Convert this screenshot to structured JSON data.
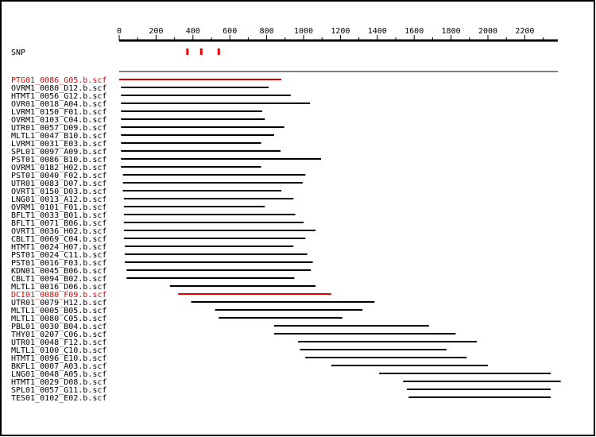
{
  "axis": {
    "tick_labels": [
      "0",
      "200",
      "400",
      "600",
      "800",
      "1000",
      "1200",
      "1400",
      "1600",
      "1800",
      "2000",
      "2200"
    ],
    "min": 0,
    "max": 2380,
    "major_step": 200,
    "minor_step": 100
  },
  "snp": {
    "label": "SNP",
    "positions": [
      370,
      445,
      540
    ],
    "color": "#e00000"
  },
  "colors": {
    "normal": "#000000",
    "highlight": "#e00000",
    "frame": "#000000"
  },
  "reads": [
    {
      "name": "PTG01_0086_G05.b.scf",
      "start": 0,
      "end": 880,
      "highlight": true
    },
    {
      "name": "OVRM1_0080_D12.b.scf",
      "start": 10,
      "end": 810,
      "highlight": false
    },
    {
      "name": "HTMT1_0056_G12.b.scf",
      "start": 10,
      "end": 930,
      "highlight": false
    },
    {
      "name": "OVR01_0018_A04.b.scf",
      "start": 10,
      "end": 1035,
      "highlight": false
    },
    {
      "name": "LVRM1_0150_F01.b.scf",
      "start": 10,
      "end": 775,
      "highlight": false
    },
    {
      "name": "OVRM1_0103_C04.b.scf",
      "start": 10,
      "end": 790,
      "highlight": false
    },
    {
      "name": "UTR01_0057_D09.b.scf",
      "start": 10,
      "end": 895,
      "highlight": false
    },
    {
      "name": "MLTL1_0047_B10.b.scf",
      "start": 10,
      "end": 840,
      "highlight": false
    },
    {
      "name": "LVRM1_0031_E03.b.scf",
      "start": 10,
      "end": 770,
      "highlight": false
    },
    {
      "name": "SPL01_0097_A09.b.scf",
      "start": 10,
      "end": 875,
      "highlight": false
    },
    {
      "name": "PST01_0086_B10.b.scf",
      "start": 10,
      "end": 1095,
      "highlight": false
    },
    {
      "name": "OVRM1_0182_H02.b.scf",
      "start": 10,
      "end": 770,
      "highlight": false
    },
    {
      "name": "PST01_0040_F02.b.scf",
      "start": 20,
      "end": 1010,
      "highlight": false
    },
    {
      "name": "UTR01_0083_D07.b.scf",
      "start": 20,
      "end": 995,
      "highlight": false
    },
    {
      "name": "OVRT1_0150_D03.b.scf",
      "start": 20,
      "end": 880,
      "highlight": false
    },
    {
      "name": "LNG01_0013_A12.b.scf",
      "start": 25,
      "end": 945,
      "highlight": false
    },
    {
      "name": "OVRM1_0101_F01.b.scf",
      "start": 25,
      "end": 790,
      "highlight": false
    },
    {
      "name": "BFLT1_0033_B01.b.scf",
      "start": 25,
      "end": 955,
      "highlight": false
    },
    {
      "name": "BFLT1_0071_B06.b.scf",
      "start": 25,
      "end": 1000,
      "highlight": false
    },
    {
      "name": "OVRT1_0036_H02.b.scf",
      "start": 25,
      "end": 1065,
      "highlight": false
    },
    {
      "name": "CBLT1_0069_C04.b.scf",
      "start": 25,
      "end": 1010,
      "highlight": false
    },
    {
      "name": "HTMT1_0024_H07.b.scf",
      "start": 30,
      "end": 945,
      "highlight": false
    },
    {
      "name": "PST01_0024_C11.b.scf",
      "start": 30,
      "end": 1020,
      "highlight": false
    },
    {
      "name": "PST01_0016_F03.b.scf",
      "start": 30,
      "end": 1050,
      "highlight": false
    },
    {
      "name": "KDN01_0045_B06.b.scf",
      "start": 40,
      "end": 1040,
      "highlight": false
    },
    {
      "name": "CBLT1_0094_B02.b.scf",
      "start": 40,
      "end": 950,
      "highlight": false
    },
    {
      "name": "MLTL1_0016_D06.b.scf",
      "start": 275,
      "end": 1065,
      "highlight": false
    },
    {
      "name": "DCI01_0080_F09.b.scf",
      "start": 320,
      "end": 1150,
      "highlight": true
    },
    {
      "name": "UTR01_0079_H12.b.scf",
      "start": 390,
      "end": 1385,
      "highlight": false
    },
    {
      "name": "MLTL1_0005_B05.b.scf",
      "start": 520,
      "end": 1320,
      "highlight": false
    },
    {
      "name": "MLTL1_0080_C05.b.scf",
      "start": 540,
      "end": 1210,
      "highlight": false
    },
    {
      "name": "PBL01_0030_B04.b.scf",
      "start": 840,
      "end": 1680,
      "highlight": false
    },
    {
      "name": "THY01_0207_C06.b.scf",
      "start": 840,
      "end": 1825,
      "highlight": false
    },
    {
      "name": "UTR01_0048_F12.b.scf",
      "start": 970,
      "end": 1940,
      "highlight": false
    },
    {
      "name": "MLTL1_0100_C10.b.scf",
      "start": 980,
      "end": 1775,
      "highlight": false
    },
    {
      "name": "HTMT1_0096_E10.b.scf",
      "start": 1010,
      "end": 1885,
      "highlight": false
    },
    {
      "name": "BKFL1_0007_A03.b.scf",
      "start": 1150,
      "end": 2000,
      "highlight": false
    },
    {
      "name": "LNG01_0048_A05.b.scf",
      "start": 1410,
      "end": 2340,
      "highlight": false
    },
    {
      "name": "HTMT1_0029_D08.b.scf",
      "start": 1540,
      "end": 2395,
      "highlight": false
    },
    {
      "name": "SPL01_0057_G11.b.scf",
      "start": 1560,
      "end": 2340,
      "highlight": false
    },
    {
      "name": "TES01_0102_E02.b.scf",
      "start": 1570,
      "end": 2340,
      "highlight": false
    }
  ]
}
